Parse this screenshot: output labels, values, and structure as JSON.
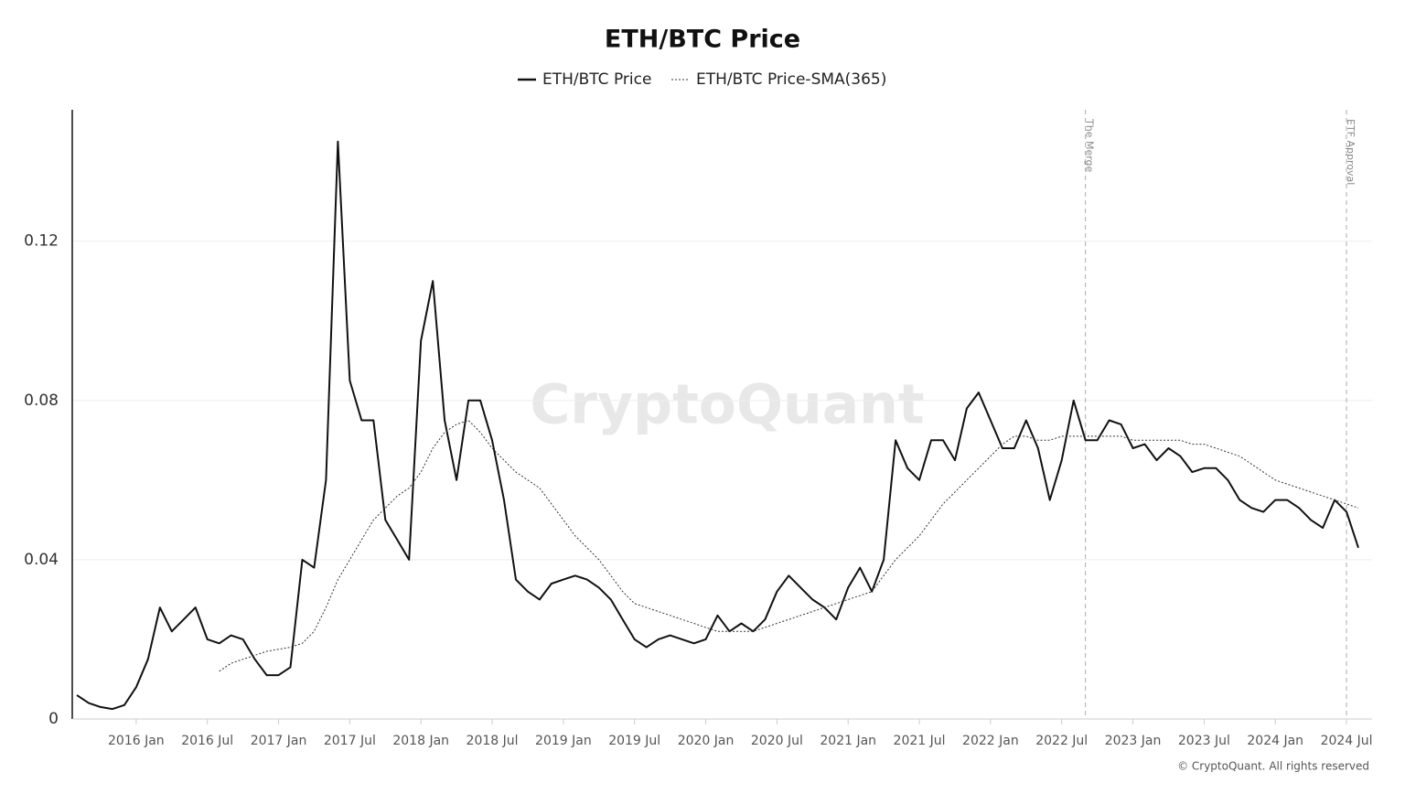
{
  "chart_data": {
    "type": "line",
    "title": "ETH/BTC Price",
    "watermark": "CryptoQuant",
    "footer": "© CryptoQuant. All rights reserved",
    "x": [
      "2015-08",
      "2015-09",
      "2015-10",
      "2015-11",
      "2015-12",
      "2016-01",
      "2016-02",
      "2016-03",
      "2016-04",
      "2016-05",
      "2016-06",
      "2016-07",
      "2016-08",
      "2016-09",
      "2016-10",
      "2016-11",
      "2016-12",
      "2017-01",
      "2017-02",
      "2017-03",
      "2017-04",
      "2017-05",
      "2017-06",
      "2017-07",
      "2017-08",
      "2017-09",
      "2017-10",
      "2017-11",
      "2017-12",
      "2018-01",
      "2018-02",
      "2018-03",
      "2018-04",
      "2018-05",
      "2018-06",
      "2018-07",
      "2018-08",
      "2018-09",
      "2018-10",
      "2018-11",
      "2018-12",
      "2019-01",
      "2019-02",
      "2019-03",
      "2019-04",
      "2019-05",
      "2019-06",
      "2019-07",
      "2019-08",
      "2019-09",
      "2019-10",
      "2019-11",
      "2019-12",
      "2020-01",
      "2020-02",
      "2020-03",
      "2020-04",
      "2020-05",
      "2020-06",
      "2020-07",
      "2020-08",
      "2020-09",
      "2020-10",
      "2020-11",
      "2020-12",
      "2021-01",
      "2021-02",
      "2021-03",
      "2021-04",
      "2021-05",
      "2021-06",
      "2021-07",
      "2021-08",
      "2021-09",
      "2021-10",
      "2021-11",
      "2021-12",
      "2022-01",
      "2022-02",
      "2022-03",
      "2022-04",
      "2022-05",
      "2022-06",
      "2022-07",
      "2022-08",
      "2022-09",
      "2022-10",
      "2022-11",
      "2022-12",
      "2023-01",
      "2023-02",
      "2023-03",
      "2023-04",
      "2023-05",
      "2023-06",
      "2023-07",
      "2023-08",
      "2023-09",
      "2023-10",
      "2023-11",
      "2023-12",
      "2024-01",
      "2024-02",
      "2024-03",
      "2024-04",
      "2024-05",
      "2024-06",
      "2024-07",
      "2024-08"
    ],
    "series": [
      {
        "name": "ETH/BTC Price",
        "color": "#111111",
        "dash": "none",
        "values": [
          0.006,
          0.004,
          0.003,
          0.0025,
          0.0035,
          0.008,
          0.015,
          0.028,
          0.022,
          0.025,
          0.028,
          0.02,
          0.019,
          0.021,
          0.02,
          0.015,
          0.011,
          0.011,
          0.013,
          0.04,
          0.038,
          0.06,
          0.145,
          0.085,
          0.075,
          0.075,
          0.05,
          0.045,
          0.04,
          0.095,
          0.11,
          0.075,
          0.06,
          0.08,
          0.08,
          0.07,
          0.055,
          0.035,
          0.032,
          0.03,
          0.034,
          0.035,
          0.036,
          0.035,
          0.033,
          0.03,
          0.025,
          0.02,
          0.018,
          0.02,
          0.021,
          0.02,
          0.019,
          0.02,
          0.026,
          0.022,
          0.024,
          0.022,
          0.025,
          0.032,
          0.036,
          0.033,
          0.03,
          0.028,
          0.025,
          0.033,
          0.038,
          0.032,
          0.04,
          0.07,
          0.063,
          0.06,
          0.07,
          0.07,
          0.065,
          0.078,
          0.082,
          0.075,
          0.068,
          0.068,
          0.075,
          0.068,
          0.055,
          0.065,
          0.08,
          0.07,
          0.07,
          0.075,
          0.074,
          0.068,
          0.069,
          0.065,
          0.068,
          0.066,
          0.062,
          0.063,
          0.063,
          0.06,
          0.055,
          0.053,
          0.052,
          0.055,
          0.055,
          0.053,
          0.05,
          0.048,
          0.055,
          0.052,
          0.043
        ]
      },
      {
        "name": "ETH/BTC Price-SMA(365)",
        "color": "#333333",
        "dash": "2 2",
        "values": [
          null,
          null,
          null,
          null,
          null,
          null,
          null,
          null,
          null,
          null,
          null,
          null,
          0.012,
          0.014,
          0.015,
          0.016,
          0.017,
          0.0175,
          0.018,
          0.019,
          0.022,
          0.028,
          0.035,
          0.04,
          0.045,
          0.05,
          0.053,
          0.056,
          0.058,
          0.062,
          0.068,
          0.072,
          0.074,
          0.075,
          0.072,
          0.068,
          0.065,
          0.062,
          0.06,
          0.058,
          0.054,
          0.05,
          0.046,
          0.043,
          0.04,
          0.036,
          0.032,
          0.029,
          0.028,
          0.027,
          0.026,
          0.025,
          0.024,
          0.023,
          0.022,
          0.022,
          0.022,
          0.022,
          0.023,
          0.024,
          0.025,
          0.026,
          0.027,
          0.028,
          0.029,
          0.03,
          0.031,
          0.032,
          0.036,
          0.04,
          0.043,
          0.046,
          0.05,
          0.054,
          0.057,
          0.06,
          0.063,
          0.066,
          0.069,
          0.071,
          0.071,
          0.07,
          0.07,
          0.071,
          0.071,
          0.071,
          0.071,
          0.071,
          0.071,
          0.07,
          0.07,
          0.07,
          0.07,
          0.07,
          0.069,
          0.069,
          0.068,
          0.067,
          0.066,
          0.064,
          0.062,
          0.06,
          0.059,
          0.058,
          0.057,
          0.056,
          0.055,
          0.054,
          0.053
        ]
      }
    ],
    "xlim": [
      "2015-08",
      "2024-09"
    ],
    "xticks": [
      {
        "value": "2016-01",
        "label": "2016 Jan"
      },
      {
        "value": "2016-07",
        "label": "2016 Jul"
      },
      {
        "value": "2017-01",
        "label": "2017 Jan"
      },
      {
        "value": "2017-07",
        "label": "2017 Jul"
      },
      {
        "value": "2018-01",
        "label": "2018 Jan"
      },
      {
        "value": "2018-07",
        "label": "2018 Jul"
      },
      {
        "value": "2019-01",
        "label": "2019 Jan"
      },
      {
        "value": "2019-07",
        "label": "2019 Jul"
      },
      {
        "value": "2020-01",
        "label": "2020 Jan"
      },
      {
        "value": "2020-07",
        "label": "2020 Jul"
      },
      {
        "value": "2021-01",
        "label": "2021 Jan"
      },
      {
        "value": "2021-07",
        "label": "2021 Jul"
      },
      {
        "value": "2022-01",
        "label": "2022 Jan"
      },
      {
        "value": "2022-07",
        "label": "2022 Jul"
      },
      {
        "value": "2023-01",
        "label": "2023 Jan"
      },
      {
        "value": "2023-07",
        "label": "2023 Jul"
      },
      {
        "value": "2024-01",
        "label": "2024 Jan"
      },
      {
        "value": "2024-07",
        "label": "2024 Jul"
      }
    ],
    "ylim": [
      0,
      0.153
    ],
    "yticks": [
      0,
      0.04,
      0.08,
      0.12
    ],
    "grid": true,
    "annotations": [
      {
        "x": "2022-09",
        "label": "The Merge"
      },
      {
        "x": "2024-07",
        "label": "ETF Approval"
      }
    ]
  }
}
